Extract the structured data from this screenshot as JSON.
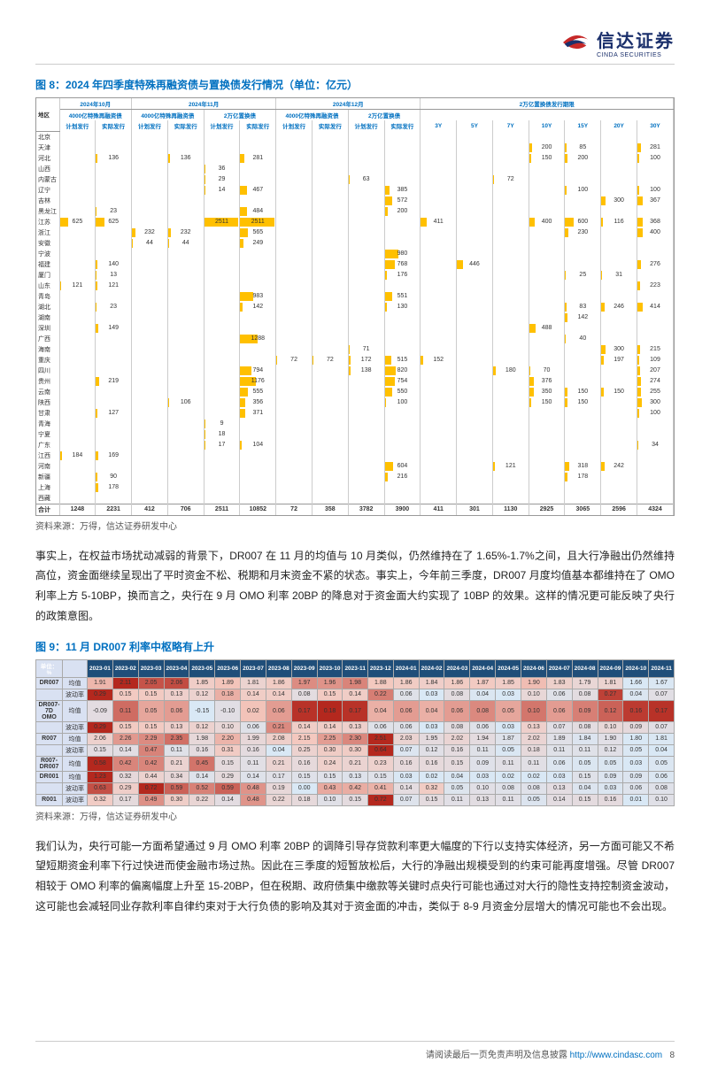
{
  "header": {
    "logo_cn": "信达证券",
    "logo_en": "CINDA SECURITIES"
  },
  "figure8": {
    "title": "图 8：2024 年四季度特殊再融资债与置换债发行情况（单位：亿元）",
    "source": "资料来源：万得，信达证券研发中心",
    "top_groups": [
      "2024年10月",
      "2024年11月",
      "2024年12月",
      "2万亿置换债发行期限"
    ],
    "sub_groups": [
      "4000亿特殊再融资债",
      "4000亿特殊再融资债",
      "2万亿置换债",
      "4000亿特殊再融资债",
      "2万亿置换债"
    ],
    "col_headers": [
      "地区",
      "计划发行",
      "实际发行",
      "计划发行",
      "实际发行",
      "计划发行",
      "实际发行",
      "计划发行",
      "实际发行",
      "计划发行",
      "实际发行",
      "3Y",
      "5Y",
      "7Y",
      "10Y",
      "15Y",
      "20Y",
      "30Y"
    ],
    "rows": [
      {
        "r": "北京",
        "v": [
          "",
          "",
          "",
          "",
          "",
          "",
          "",
          "",
          "",
          "",
          "",
          "",
          "",
          "",
          "",
          "",
          ""
        ]
      },
      {
        "r": "天津",
        "v": [
          "",
          "",
          "",
          "",
          "",
          "",
          "",
          "",
          "",
          "",
          "",
          "",
          "",
          "200",
          "85",
          "",
          "281"
        ]
      },
      {
        "r": "河北",
        "v": [
          "",
          "136",
          "",
          "136",
          "",
          "281",
          "",
          "",
          "",
          "",
          "",
          "",
          "",
          "150",
          "200",
          "",
          "100"
        ]
      },
      {
        "r": "山西",
        "v": [
          "",
          "",
          "",
          "",
          "36",
          "",
          "",
          "",
          "",
          "",
          "",
          "",
          "",
          "",
          "",
          "",
          ""
        ]
      },
      {
        "r": "内蒙古",
        "v": [
          "",
          "",
          "",
          "",
          "29",
          "",
          "",
          "",
          "63",
          "",
          "",
          "",
          "72",
          "",
          "",
          "",
          ""
        ]
      },
      {
        "r": "辽宁",
        "v": [
          "",
          "",
          "",
          "",
          "14",
          "467",
          "",
          "",
          "",
          "385",
          "",
          "",
          "",
          "",
          "100",
          "",
          "100"
        ]
      },
      {
        "r": "吉林",
        "v": [
          "",
          "",
          "",
          "",
          "",
          "",
          "",
          "",
          "",
          "572",
          "",
          "",
          "",
          "",
          "",
          "300",
          "367"
        ]
      },
      {
        "r": "黑龙江",
        "v": [
          "",
          "23",
          "",
          "",
          "",
          "484",
          "",
          "",
          "",
          "200",
          "",
          "",
          "",
          "",
          "",
          "",
          ""
        ]
      },
      {
        "r": "江苏",
        "v": [
          "625",
          "625",
          "",
          "",
          "2511",
          "2511",
          "",
          "",
          "",
          "",
          "411",
          "",
          "",
          "400",
          "600",
          "116",
          "368"
        ]
      },
      {
        "r": "浙江",
        "v": [
          "",
          "",
          "232",
          "232",
          "",
          "565",
          "",
          "",
          "",
          "",
          "",
          "",
          "",
          "",
          "230",
          "",
          "400"
        ]
      },
      {
        "r": "安徽",
        "v": [
          "",
          "",
          "44",
          "44",
          "",
          "249",
          "",
          "",
          "",
          "",
          "",
          "",
          "",
          "",
          "",
          "",
          ""
        ]
      },
      {
        "r": "宁波",
        "v": [
          "",
          "",
          "",
          "",
          "",
          "",
          "",
          "",
          "",
          "980",
          "",
          "",
          "",
          "",
          "",
          "",
          ""
        ]
      },
      {
        "r": "福建",
        "v": [
          "",
          "140",
          "",
          "",
          "",
          "",
          "",
          "",
          "",
          "768",
          "",
          "446",
          "",
          "",
          "",
          "",
          "276"
        ]
      },
      {
        "r": "厦门",
        "v": [
          "",
          "13",
          "",
          "",
          "",
          "",
          "",
          "",
          "",
          "176",
          "",
          "",
          "",
          "",
          "25",
          "31",
          ""
        ]
      },
      {
        "r": "山东",
        "v": [
          "121",
          "121",
          "",
          "",
          "",
          "",
          "",
          "",
          "",
          "",
          "",
          "",
          "",
          "",
          "",
          "",
          "223"
        ]
      },
      {
        "r": "青岛",
        "v": [
          "",
          "",
          "",
          "",
          "",
          "983",
          "",
          "",
          "",
          "551",
          "",
          "",
          "",
          "",
          "",
          "",
          ""
        ]
      },
      {
        "r": "湖北",
        "v": [
          "",
          "23",
          "",
          "",
          "",
          "142",
          "",
          "",
          "",
          "130",
          "",
          "",
          "",
          "",
          "83",
          "246",
          "414"
        ]
      },
      {
        "r": "湖南",
        "v": [
          "",
          "",
          "",
          "",
          "",
          "",
          "",
          "",
          "",
          "",
          "",
          "",
          "",
          "",
          "142",
          "",
          ""
        ]
      },
      {
        "r": "深圳",
        "v": [
          "",
          "149",
          "",
          "",
          "",
          "",
          "",
          "",
          "",
          "",
          "",
          "",
          "",
          "488",
          "",
          "",
          ""
        ]
      },
      {
        "r": "广西",
        "v": [
          "",
          "",
          "",
          "",
          "",
          "1288",
          "",
          "",
          "",
          "",
          "",
          "",
          "",
          "",
          "40",
          "",
          ""
        ]
      },
      {
        "r": "海南",
        "v": [
          "",
          "",
          "",
          "",
          "",
          "",
          "",
          "",
          "71",
          "",
          "",
          "",
          "",
          "",
          "",
          "300",
          "215"
        ]
      },
      {
        "r": "重庆",
        "v": [
          "",
          "",
          "",
          "",
          "",
          "",
          "72",
          "72",
          "172",
          "515",
          "152",
          "",
          "",
          "",
          "",
          "197",
          "109"
        ]
      },
      {
        "r": "四川",
        "v": [
          "",
          "",
          "",
          "",
          "",
          "794",
          "",
          "",
          "138",
          "820",
          "",
          "",
          "180",
          "70",
          "",
          "",
          "207"
        ]
      },
      {
        "r": "贵州",
        "v": [
          "",
          "219",
          "",
          "",
          "",
          "1176",
          "",
          "",
          "",
          "754",
          "",
          "",
          "",
          "376",
          "",
          "",
          "274"
        ]
      },
      {
        "r": "云南",
        "v": [
          "",
          "",
          "",
          "",
          "",
          "555",
          "",
          "",
          "",
          "550",
          "",
          "",
          "",
          "350",
          "150",
          "150",
          "255"
        ]
      },
      {
        "r": "陕西",
        "v": [
          "",
          "",
          "",
          "106",
          "",
          "356",
          "",
          "",
          "",
          "100",
          "",
          "",
          "",
          "150",
          "150",
          "",
          "300"
        ]
      },
      {
        "r": "甘肃",
        "v": [
          "",
          "127",
          "",
          "",
          "",
          "371",
          "",
          "",
          "",
          "",
          "",
          "",
          "",
          "",
          "",
          "",
          "100"
        ]
      },
      {
        "r": "青海",
        "v": [
          "",
          "",
          "",
          "",
          "9",
          "",
          "",
          "",
          "",
          "",
          "",
          "",
          "",
          "",
          "",
          "",
          ""
        ]
      },
      {
        "r": "宁夏",
        "v": [
          "",
          "",
          "",
          "",
          "18",
          "",
          "",
          "",
          "",
          "",
          "",
          "",
          "",
          "",
          "",
          "",
          ""
        ]
      },
      {
        "r": "广东",
        "v": [
          "",
          "",
          "",
          "",
          "17",
          "104",
          "",
          "",
          "",
          "",
          "",
          "",
          "",
          "",
          "",
          "",
          "34"
        ]
      },
      {
        "r": "江西",
        "v": [
          "184",
          "169",
          "",
          "",
          "",
          "",
          "",
          "",
          "",
          "",
          "",
          "",
          "",
          "",
          "",
          "",
          ""
        ]
      },
      {
        "r": "河南",
        "v": [
          "",
          "",
          "",
          "",
          "",
          "",
          "",
          "",
          "",
          "604",
          "",
          "",
          "121",
          "",
          "318",
          "242",
          ""
        ]
      },
      {
        "r": "新疆",
        "v": [
          "",
          "90",
          "",
          "",
          "",
          "",
          "",
          "",
          "",
          "216",
          "",
          "",
          "",
          "",
          "178",
          "",
          ""
        ]
      },
      {
        "r": "上海",
        "v": [
          "",
          "178",
          "",
          "",
          "",
          "",
          "",
          "",
          "",
          "",
          "",
          "",
          "",
          "",
          "",
          "",
          ""
        ]
      },
      {
        "r": "西藏",
        "v": [
          "",
          "",
          "",
          "",
          "",
          "",
          "",
          "",
          "",
          "",
          "",
          "",
          "",
          "",
          "",
          "",
          ""
        ]
      },
      {
        "r": "合计",
        "v": [
          "1248",
          "2231",
          "412",
          "706",
          "2511",
          "10852",
          "72",
          "358",
          "3782",
          "3900",
          "411",
          "301",
          "1130",
          "2925",
          "3065",
          "2596",
          "4324"
        ]
      }
    ],
    "bar_color": "#ffc000",
    "max_scale": 2600
  },
  "para1": "事实上，在权益市场扰动减弱的背景下，DR007 在 11 月的均值与 10 月类似，仍然维持在了 1.65%-1.7%之间，且大行净融出仍然维持高位，资金面继续呈现出了平时资金不松、税期和月末资金不紧的状态。事实上，今年前三季度，DR007 月度均值基本都维持在了 OMO 利率上方 5-10BP，换而言之，央行在 9 月 OMO 利率 20BP 的降息对于资金面大约实现了 10BP 的效果。这样的情况更可能反映了央行的政策意图。",
  "figure9": {
    "title": "图 9：11 月 DR007 利率中枢略有上升",
    "source": "资料来源：万得，信达证券研发中心",
    "unit": "单位：%",
    "months": [
      "2023-01",
      "2023-02",
      "2023-03",
      "2023-04",
      "2023-05",
      "2023-06",
      "2023-07",
      "2023-08",
      "2023-09",
      "2023-10",
      "2023-11",
      "2023-12",
      "2024-01",
      "2024-02",
      "2024-03",
      "2024-04",
      "2024-05",
      "2024-06",
      "2024-07",
      "2024-08",
      "2024-09",
      "2024-10",
      "2024-11"
    ],
    "rows": [
      {
        "name": "DR007",
        "sub": "均值",
        "vals": [
          "1.91",
          "2.11",
          "2.05",
          "2.06",
          "1.85",
          "1.89",
          "1.81",
          "1.86",
          "1.97",
          "1.96",
          "1.98",
          "1.88",
          "1.86",
          "1.84",
          "1.86",
          "1.87",
          "1.85",
          "1.90",
          "1.83",
          "1.79",
          "1.81",
          "1.66",
          "1.67"
        ]
      },
      {
        "name": "",
        "sub": "波动率",
        "vals": [
          "0.29",
          "0.15",
          "0.15",
          "0.13",
          "0.12",
          "0.18",
          "0.14",
          "0.14",
          "0.08",
          "0.15",
          "0.14",
          "0.22",
          "0.06",
          "0.03",
          "0.08",
          "0.04",
          "0.03",
          "0.10",
          "0.06",
          "0.08",
          "0.27",
          "0.04",
          "0.07"
        ]
      },
      {
        "name": "DR007-7D OMO",
        "sub": "均值",
        "vals": [
          "-0.09",
          "0.11",
          "0.05",
          "0.06",
          "-0.15",
          "-0.10",
          "0.02",
          "0.06",
          "0.17",
          "0.18",
          "0.17",
          "0.04",
          "0.06",
          "0.04",
          "0.06",
          "0.08",
          "0.05",
          "0.10",
          "0.06",
          "0.09",
          "0.12",
          "0.16",
          "0.17"
        ]
      },
      {
        "name": "",
        "sub": "波动率",
        "vals": [
          "0.29",
          "0.15",
          "0.15",
          "0.13",
          "0.12",
          "0.10",
          "0.06",
          "0.21",
          "0.14",
          "0.14",
          "0.13",
          "0.06",
          "0.06",
          "0.03",
          "0.08",
          "0.06",
          "0.03",
          "0.13",
          "0.07",
          "0.08",
          "0.10",
          "0.09",
          "0.07"
        ]
      },
      {
        "name": "R007",
        "sub": "均值",
        "vals": [
          "2.06",
          "2.26",
          "2.29",
          "2.35",
          "1.98",
          "2.20",
          "1.99",
          "2.08",
          "2.15",
          "2.25",
          "2.30",
          "2.51",
          "2.03",
          "1.95",
          "2.02",
          "1.94",
          "1.87",
          "2.02",
          "1.89",
          "1.84",
          "1.90",
          "1.80",
          "1.81"
        ]
      },
      {
        "name": "",
        "sub": "波动率",
        "vals": [
          "0.15",
          "0.14",
          "0.47",
          "0.11",
          "0.16",
          "0.31",
          "0.16",
          "0.04",
          "0.25",
          "0.30",
          "0.30",
          "0.64",
          "0.07",
          "0.12",
          "0.16",
          "0.11",
          "0.05",
          "0.18",
          "0.11",
          "0.11",
          "0.12",
          "0.05",
          "0.04"
        ]
      },
      {
        "name": "R007-DR007",
        "sub": "均值",
        "vals": [
          "0.58",
          "0.42",
          "0.42",
          "0.21",
          "0.45",
          "0.15",
          "0.11",
          "0.21",
          "0.16",
          "0.24",
          "0.21",
          "0.23",
          "0.16",
          "0.16",
          "0.15",
          "0.09",
          "0.11",
          "0.11",
          "0.06",
          "0.05",
          "0.05",
          "0.03",
          "0.05"
        ]
      },
      {
        "name": "DR001",
        "sub": "均值",
        "vals": [
          "1.23",
          "0.32",
          "0.44",
          "0.34",
          "0.14",
          "0.29",
          "0.14",
          "0.17",
          "0.15",
          "0.15",
          "0.13",
          "0.15",
          "0.03",
          "0.02",
          "0.04",
          "0.03",
          "0.02",
          "0.02",
          "0.03",
          "0.15",
          "0.09",
          "0.09",
          "0.06"
        ]
      },
      {
        "name": "",
        "sub": "波动率",
        "vals": [
          "0.63",
          "0.29",
          "0.72",
          "0.59",
          "0.52",
          "0.59",
          "0.48",
          "0.19",
          "0.00",
          "0.43",
          "0.42",
          "0.41",
          "0.14",
          "0.32",
          "0.05",
          "0.10",
          "0.08",
          "0.08",
          "0.13",
          "0.04",
          "0.03",
          "0.06",
          "0.08"
        ]
      },
      {
        "name": "R001",
        "sub": "波动率",
        "vals": [
          "0.32",
          "0.17",
          "0.49",
          "0.30",
          "0.22",
          "0.14",
          "0.48",
          "0.22",
          "0.18",
          "0.10",
          "0.15",
          "0.72",
          "0.07",
          "0.15",
          "0.11",
          "0.13",
          "0.11",
          "0.05",
          "0.14",
          "0.15",
          "0.16",
          "0.01",
          "0.10"
        ]
      }
    ],
    "cmap_lo": "#d9e8f5",
    "cmap_hi": "#b4281e"
  },
  "para2": "我们认为，央行可能一方面希望通过 9 月 OMO 利率 20BP 的调降引导存贷款利率更大幅度的下行以支持实体经济，另一方面可能又不希望短期资金利率下行过快进而使金融市场过热。因此在三季度的短暂放松后，大行的净融出规模受到的约束可能再度增强。尽管 DR007 相较于 OMO 利率的偏离幅度上升至 15-20BP，但在税期、政府债集中缴款等关键时点央行可能也通过对大行的隐性支持控制资金波动，这可能也会减轻同业存款利率自律约束对于大行负债的影响及其对于资金面的冲击，类似于 8-9 月资金分层增大的情况可能也不会出现。",
  "footer": {
    "text": "请阅读最后一页免责声明及信息披露",
    "link": "http://www.cindasc.com",
    "page": "8"
  }
}
